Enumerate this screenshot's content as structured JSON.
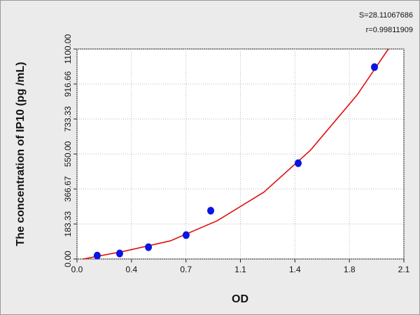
{
  "chart_data": {
    "type": "scatter",
    "annotations": [
      "S=28.11067686",
      "r=0.99811909"
    ],
    "x_label": "OD",
    "y_label": "The concentration of IP10 (pg /mL)",
    "x": [
      0.13,
      0.274,
      0.459,
      0.701,
      0.859,
      1.421,
      1.911
    ],
    "values": [
      18,
      29,
      62,
      125,
      253,
      502,
      1005
    ],
    "color": "#0a14e6",
    "fit": {
      "x": [
        0.04,
        0.3,
        0.6,
        0.9,
        1.2,
        1.5,
        1.8,
        2.0
      ],
      "values": [
        0,
        40,
        95,
        200,
        350,
        570,
        860,
        1100
      ],
      "color": "#e01010"
    },
    "xlim": [
      0,
      2.1
    ],
    "xticks": [
      {
        "value": 0,
        "label": "0.0"
      },
      {
        "value": 0.35,
        "label": "0.4"
      },
      0.7,
      {
        "value": 1.05,
        "label": "1.1"
      },
      1.4,
      {
        "value": 1.75,
        "label": "1.8"
      },
      2.1
    ],
    "ylim": [
      0,
      1100
    ],
    "yticks": [
      {
        "value": 0,
        "label": "0.00"
      },
      183.33,
      366.67,
      {
        "value": 550,
        "label": "550.00"
      },
      733.33,
      916.66,
      {
        "value": 1100,
        "label": "1100.00"
      }
    ],
    "grid": true
  }
}
